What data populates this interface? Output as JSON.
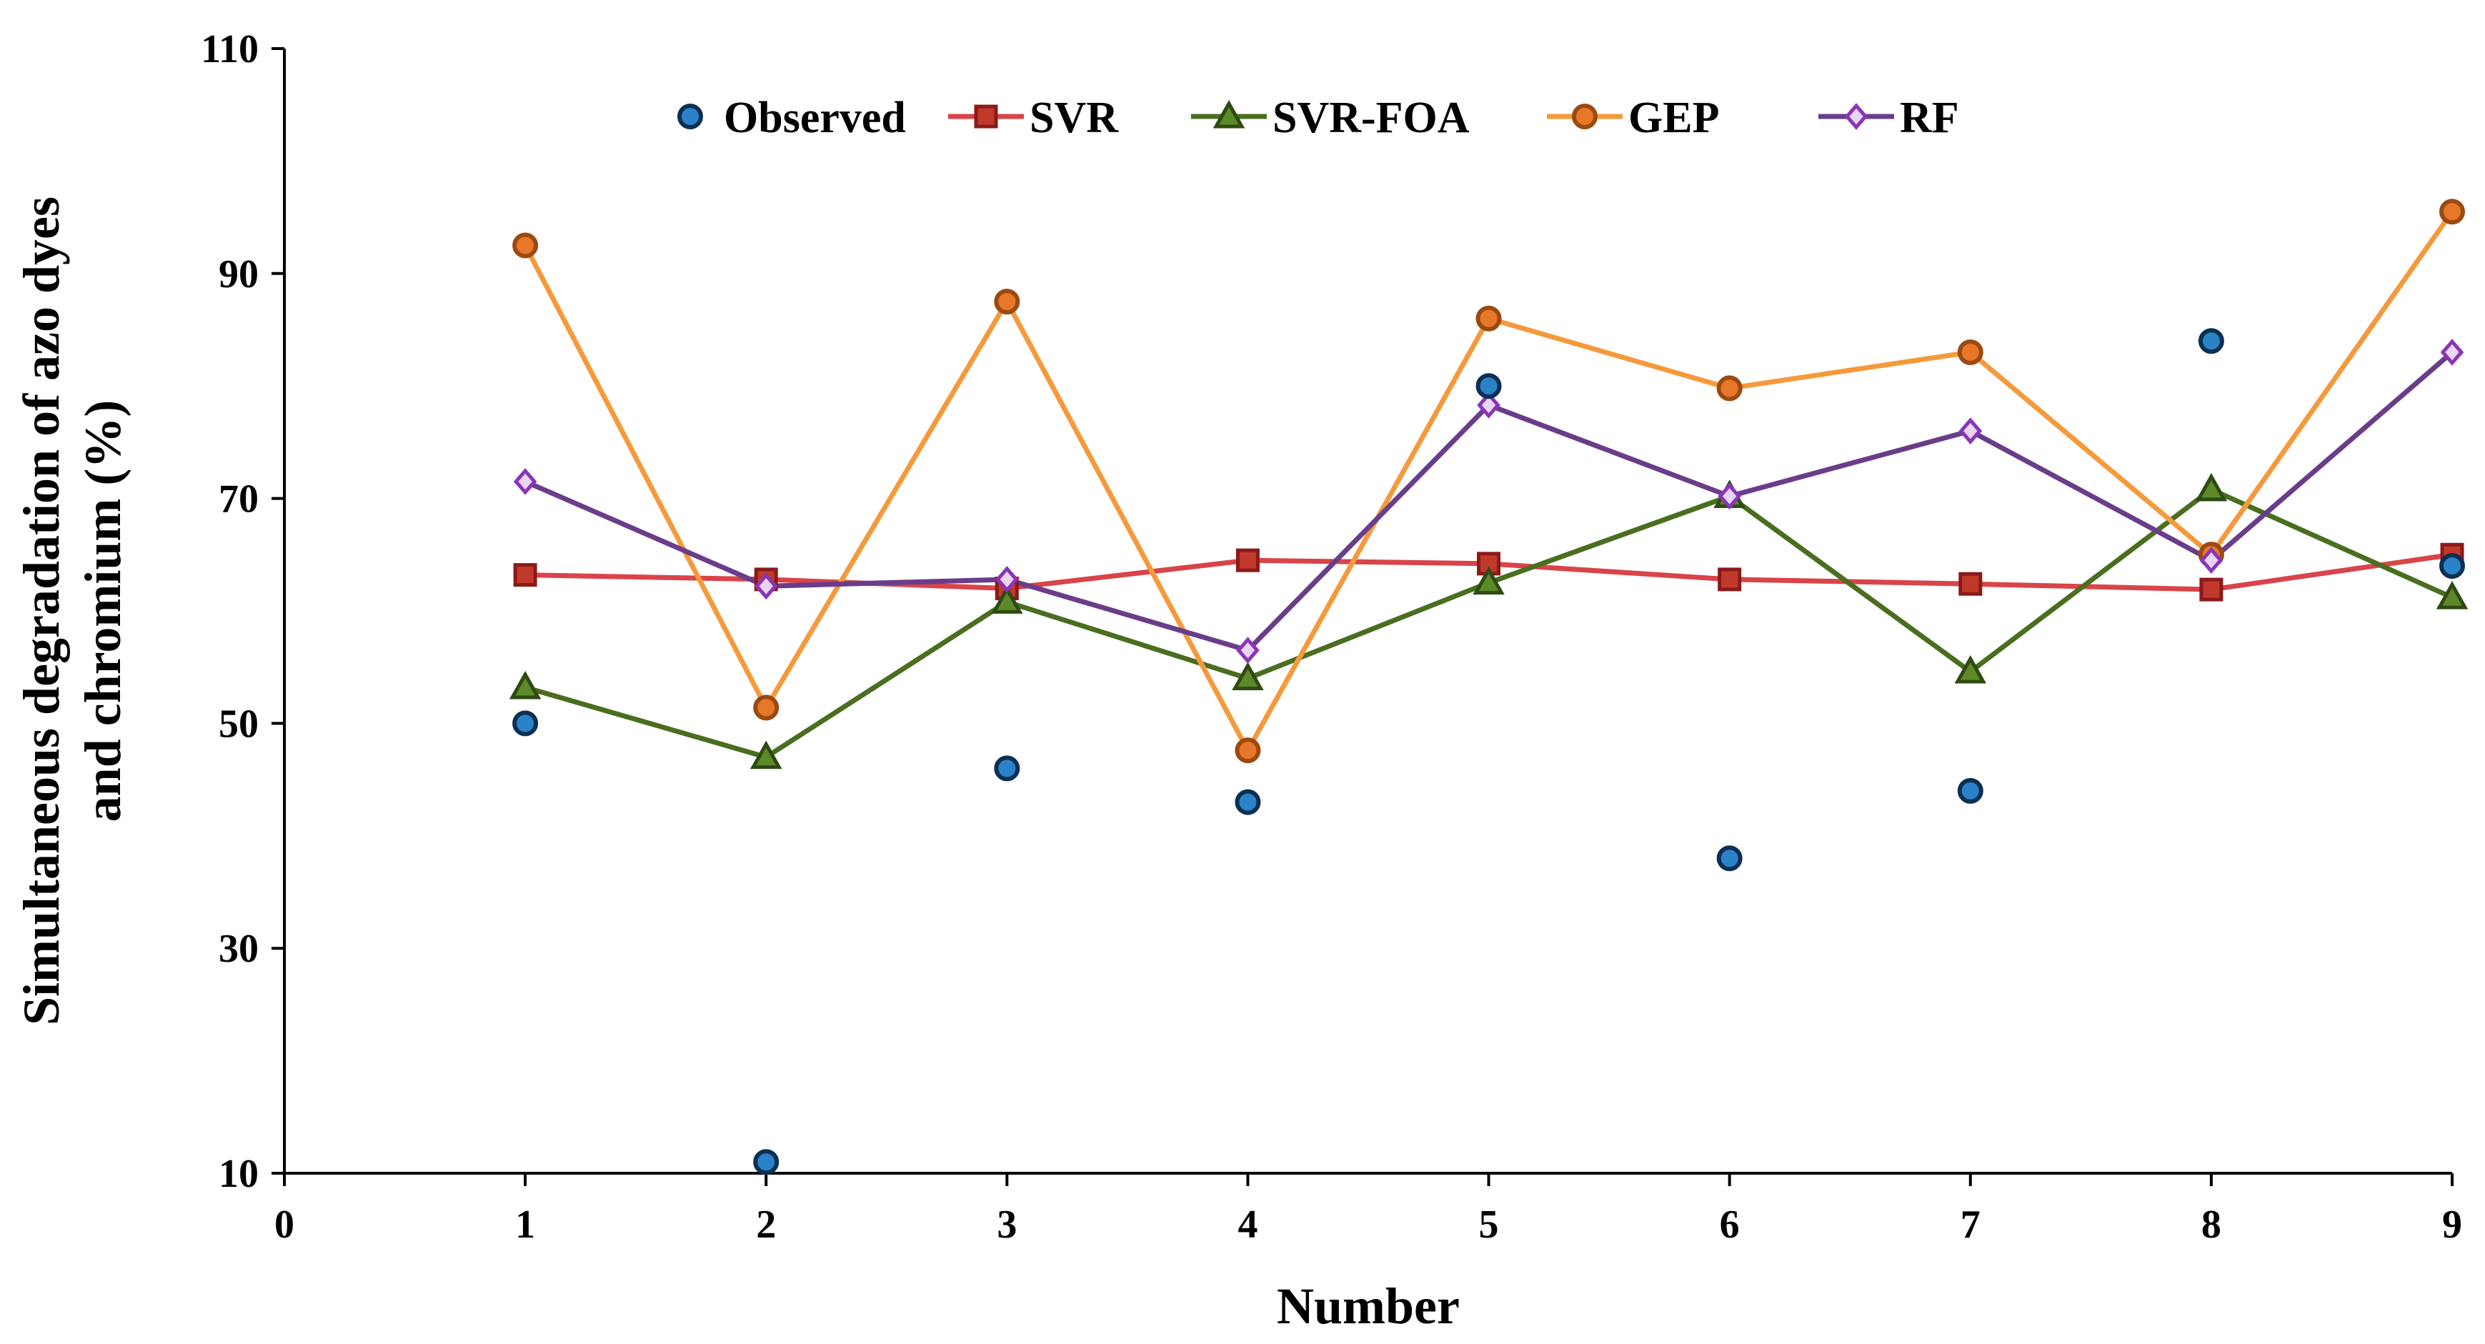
{
  "chart_data": {
    "type": "line",
    "title": "",
    "xlabel": "Number",
    "ylabel_line1": "Simultaneous degradation of azo dyes",
    "ylabel_line2": "and chromium (%)",
    "xlim": [
      0,
      9
    ],
    "ylim": [
      10,
      110
    ],
    "x_ticks": [
      0,
      1,
      2,
      3,
      4,
      5,
      6,
      7,
      8,
      9
    ],
    "y_ticks": [
      10,
      30,
      50,
      70,
      90,
      110
    ],
    "grid": false,
    "legend_position": "top",
    "x": [
      1,
      2,
      3,
      4,
      5,
      6,
      7,
      8,
      9
    ],
    "series": [
      {
        "name": "Observed",
        "marker": "circle",
        "line": false,
        "color": "#1f5fa0",
        "fill": "#2a83c9",
        "values": [
          50,
          11,
          46,
          43,
          80,
          38,
          44,
          84,
          64
        ]
      },
      {
        "name": "SVR",
        "marker": "square",
        "line": true,
        "color": "#d9444a",
        "fill": "#c0392b",
        "edge": "#8b1a1a",
        "values": [
          63.2,
          62.8,
          62,
          64.5,
          64.2,
          62.8,
          62.4,
          61.9,
          65
        ]
      },
      {
        "name": "SVR-FOA",
        "marker": "triangle",
        "line": true,
        "color": "#4a6e1f",
        "fill": "#5c8a28",
        "edge": "#2f4a12",
        "values": [
          53.2,
          47,
          60.8,
          54,
          62.5,
          70.2,
          54.6,
          70.8,
          61.2
        ]
      },
      {
        "name": "GEP",
        "marker": "circle",
        "line": true,
        "color": "#f59a3c",
        "fill": "#e8772a",
        "edge": "#9b4a10",
        "values": [
          92.5,
          51.4,
          87.5,
          47.6,
          86,
          79.8,
          83,
          65,
          95.5
        ]
      },
      {
        "name": "RF",
        "marker": "diamond",
        "line": true,
        "color": "#6a3d8a",
        "fill": "#e9d4f2",
        "edge": "#8a35b8",
        "values": [
          71.5,
          62.2,
          62.8,
          56.5,
          78.3,
          70.2,
          76,
          64.5,
          83
        ]
      }
    ]
  }
}
